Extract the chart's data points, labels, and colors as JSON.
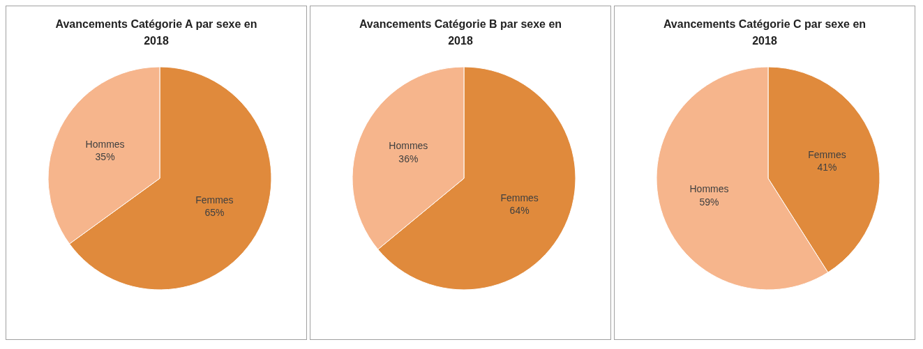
{
  "chart_data": [
    {
      "type": "pie",
      "title": "Avancements Catégorie A par sexe en 2018",
      "categories": [
        "Femmes",
        "Hommes"
      ],
      "values": [
        65,
        35
      ],
      "colors": [
        "#e08a3c",
        "#f6b58c"
      ],
      "value_labels": [
        "65%",
        "35%"
      ]
    },
    {
      "type": "pie",
      "title": "Avancements Catégorie B par sexe en 2018",
      "categories": [
        "Femmes",
        "Hommes"
      ],
      "values": [
        64,
        36
      ],
      "colors": [
        "#e08a3c",
        "#f6b58c"
      ],
      "value_labels": [
        "64%",
        "36%"
      ]
    },
    {
      "type": "pie",
      "title": "Avancements Catégorie C par sexe en 2018",
      "categories": [
        "Femmes",
        "Hommes"
      ],
      "values": [
        41,
        59
      ],
      "colors": [
        "#e08a3c",
        "#f6b58c"
      ],
      "value_labels": [
        "41%",
        "59%"
      ]
    }
  ]
}
